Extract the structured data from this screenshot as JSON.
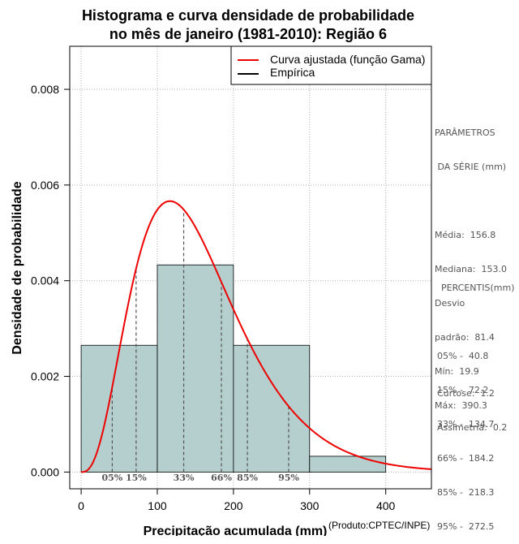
{
  "chart_data": {
    "type": "bar",
    "title_line1": "Histograma e curva densidade de probabilidade",
    "title_line2": "no mês de janeiro (1981-2010): Região 6",
    "xlabel": "Precipitação acumulada (mm)",
    "ylabel": "Densidade de probabilidade",
    "credit": "(Produto:CPTEC/INPE)",
    "xlim": [
      -15,
      460
    ],
    "ylim": [
      -0.00035,
      0.0089
    ],
    "x_ticks": [
      0,
      100,
      200,
      300,
      400
    ],
    "x_tick_labels": [
      "0",
      "100",
      "200",
      "300",
      "400"
    ],
    "y_ticks": [
      0.0,
      0.002,
      0.004,
      0.006,
      0.008
    ],
    "y_tick_labels": [
      "0.000",
      "0.002",
      "0.004",
      "0.006",
      "0.008"
    ],
    "bins": [
      {
        "start": 0,
        "end": 100,
        "density": 0.00265
      },
      {
        "start": 100,
        "end": 200,
        "density": 0.00433
      },
      {
        "start": 200,
        "end": 300,
        "density": 0.00265
      },
      {
        "start": 300,
        "end": 400,
        "density": 0.00033
      }
    ],
    "gamma_fit": {
      "shape": 3.9,
      "scale": 40.2
    },
    "percentile_lines": [
      {
        "label": "05%",
        "x": 40.8
      },
      {
        "label": "15%",
        "x": 72.2
      },
      {
        "label": "33%",
        "x": 134.7
      },
      {
        "label": "66%",
        "x": 184.2
      },
      {
        "label": "85%",
        "x": 218.3
      },
      {
        "label": "95%",
        "x": 272.5
      }
    ],
    "legend": [
      {
        "label": "Curva ajustada (função Gama)",
        "color": "#ee0000"
      },
      {
        "label": "Empírica",
        "color": "#000000"
      }
    ],
    "colors": {
      "bar_fill": "#b4cfcd",
      "curve": "#ee0000",
      "grid": "#b0b0b0",
      "percentile": "#555555"
    }
  },
  "params": {
    "heading1": "PARÂMETROS",
    "heading2": " DA SÉRIE (mm)",
    "lines": [
      "Média:  156.8",
      "Mediana:  153.0",
      "Desvio",
      "padrão:  81.4",
      "Mín:  19.9",
      "Máx:  390.3"
    ]
  },
  "percentis": {
    "heading": "PERCENTIS(mm)",
    "lines": [
      "05% -  40.8",
      "15% -  72.2",
      "33% -  134.7",
      "66% -  184.2",
      "85% -  218.3",
      "95% -  272.5"
    ]
  },
  "shape_stats": {
    "lines": [
      "Curtose:  1.2",
      "Assimetria:  0.2"
    ]
  }
}
